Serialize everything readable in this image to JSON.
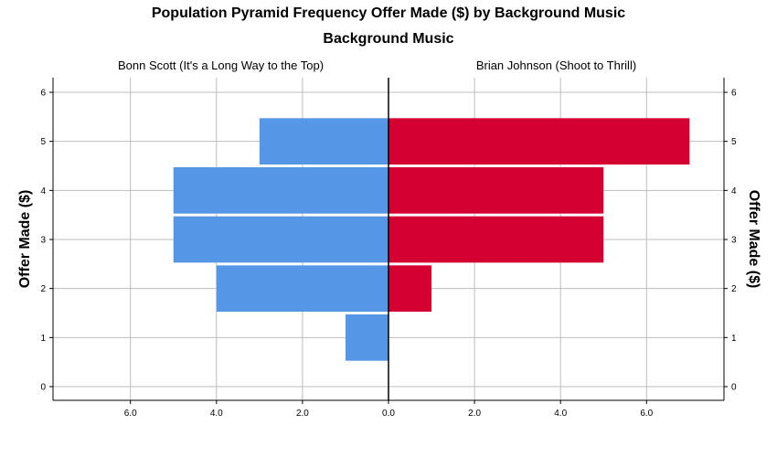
{
  "chart_data": {
    "type": "bar",
    "subtype": "population-pyramid",
    "title": "Population Pyramid Frequency Offer Made ($)  by Background Music",
    "subtitle": "Background Music",
    "ylabel": "Offer Made ($)",
    "xlim": [
      0,
      7.8
    ],
    "ylim": [
      -0.3,
      6.3
    ],
    "x_ticks": [
      0,
      2,
      4,
      6
    ],
    "x_tick_labels": [
      "0.0",
      "2.0",
      "4.0",
      "6.0"
    ],
    "y_ticks": [
      0,
      1,
      2,
      3,
      4,
      5,
      6
    ],
    "y_tick_labels": [
      "0",
      "1",
      "2",
      "3",
      "4",
      "5",
      "6"
    ],
    "categories": [
      1,
      2,
      3,
      4,
      5
    ],
    "series": [
      {
        "name": "Bonn Scott (It's a Long Way to the Top)",
        "side": "left",
        "color": "#5596E6",
        "values": [
          1,
          4,
          5,
          5,
          3
        ]
      },
      {
        "name": "Brian Johnson (Shoot to Thrill)",
        "side": "right",
        "color": "#D50032",
        "values": [
          0,
          1,
          5,
          5,
          7
        ]
      }
    ],
    "grid": true
  }
}
